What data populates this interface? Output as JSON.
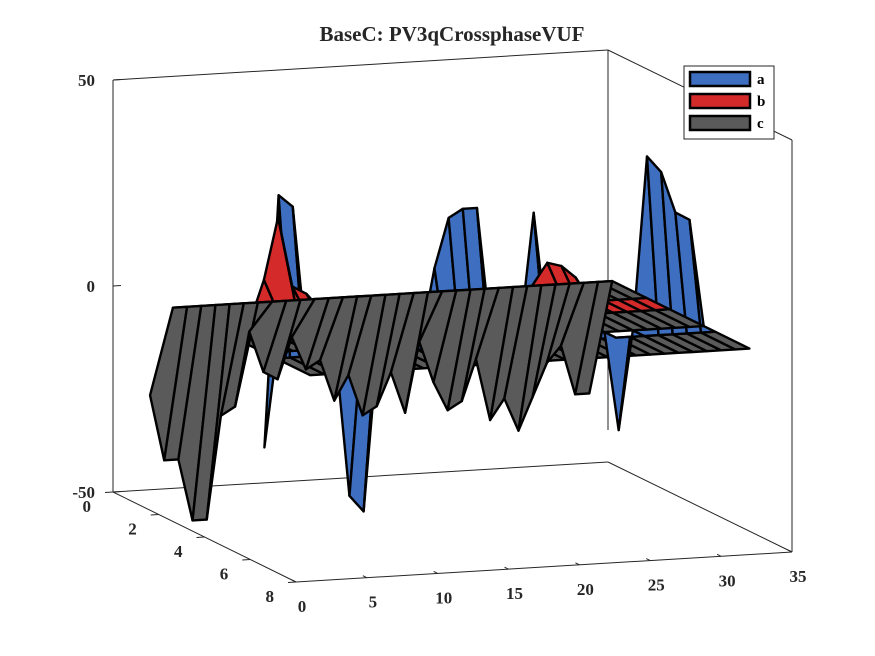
{
  "chart_data": {
    "type": "surface3d",
    "title": "BaseC: PV3qCrossphaseVUF",
    "xlabel": "",
    "ylabel": "",
    "zlabel": "",
    "x_ticks": [
      "0",
      "5",
      "10",
      "15",
      "20",
      "25",
      "30",
      "35"
    ],
    "y_ticks": [
      "0",
      "2",
      "4",
      "6",
      "8"
    ],
    "z_ticks": [
      "50",
      "0",
      "-50"
    ],
    "xlim": [
      0,
      35
    ],
    "ylim": [
      0,
      8
    ],
    "zlim": [
      -50,
      50
    ],
    "grid": false,
    "legend_position": "top-right",
    "colors": {
      "a": "#3d6ebf",
      "b": "#d42a2a",
      "c": "#5a5a5a"
    },
    "x": [
      1,
      2,
      3,
      4,
      5,
      6,
      7,
      8,
      9,
      10,
      11,
      12,
      13,
      14,
      15,
      16,
      17,
      18,
      19,
      20,
      21,
      22,
      23,
      24,
      25,
      26,
      27,
      28,
      29,
      30,
      31,
      32
    ],
    "series": [
      {
        "name": "a",
        "y_range": [
          6,
          8
        ],
        "values": [
          -23,
          38,
          35,
          0,
          0,
          0,
          -36,
          -40,
          0,
          0,
          0,
          0,
          18,
          30,
          32,
          32,
          0,
          0,
          0,
          30,
          0,
          0,
          0,
          0,
          0,
          -24,
          0,
          42,
          38,
          28,
          26,
          0
        ]
      },
      {
        "name": "b",
        "y_range": [
          3,
          5
        ],
        "values": [
          0,
          0,
          0,
          0,
          0,
          0,
          0,
          0,
          0,
          0,
          0,
          0,
          0,
          0,
          0,
          0,
          0,
          0,
          0,
          0,
          0,
          0,
          0,
          0,
          0,
          0,
          0,
          0,
          0,
          0,
          0,
          0
        ]
      },
      {
        "name": "c",
        "y_range": [
          0,
          2
        ],
        "values": [
          0,
          0,
          0,
          0,
          0,
          0,
          0,
          0,
          0,
          0,
          0,
          0,
          0,
          0,
          0,
          0,
          0,
          0,
          0,
          0,
          0,
          0,
          0,
          0,
          0,
          0,
          0,
          0,
          0,
          0,
          0,
          0
        ]
      }
    ],
    "b_front_values": [
      0,
      0,
      0,
      0,
      10,
      25,
      8,
      6,
      2,
      0,
      0,
      0,
      0,
      0,
      0,
      0,
      0,
      0,
      0,
      0,
      0,
      0,
      0,
      5,
      10,
      9,
      6,
      0,
      0,
      0,
      0,
      0
    ],
    "b_back_values": [
      0,
      0,
      0,
      0,
      0,
      0,
      0,
      0,
      0,
      0,
      0,
      0,
      0,
      0,
      0,
      0,
      0,
      0,
      0,
      0,
      0,
      0,
      0,
      0,
      0,
      0,
      0,
      0,
      30,
      5,
      4,
      8
    ],
    "c_values": [
      -24,
      -40,
      -40,
      -55,
      -55,
      -30,
      -28,
      -10,
      -20,
      -22,
      -12,
      -20,
      -18,
      -28,
      -22,
      -32,
      -30,
      -22,
      -32,
      -15,
      -25,
      -32,
      -30,
      -20,
      -35,
      -30,
      -38,
      -30,
      -22,
      -18,
      -30,
      -30
    ]
  }
}
